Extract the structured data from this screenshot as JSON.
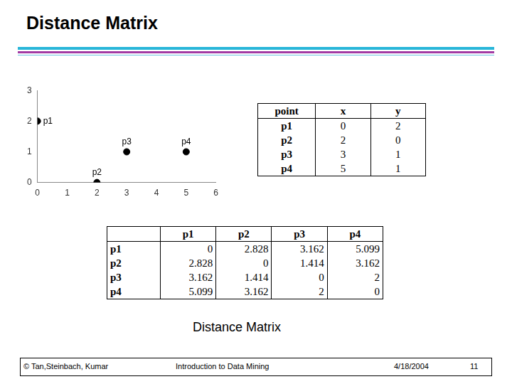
{
  "header": {
    "title": "Distance Matrix"
  },
  "chart_data": {
    "type": "scatter",
    "x": [
      0,
      2,
      3,
      5
    ],
    "values": [
      2,
      0,
      1,
      1
    ],
    "labels": [
      "p1",
      "p2",
      "p3",
      "p4"
    ],
    "color": "#000000",
    "marker": "circle",
    "xlim": [
      0,
      6
    ],
    "xticks": [
      0,
      1,
      2,
      3,
      4,
      5,
      6
    ],
    "ylim": [
      0,
      3
    ],
    "yticks": [
      0,
      1,
      2,
      3
    ],
    "grid": false
  },
  "points_table": {
    "header": [
      "point",
      "x",
      "y"
    ],
    "rows": [
      [
        "p1",
        0,
        2
      ],
      [
        "p2",
        2,
        0
      ],
      [
        "p3",
        3,
        1
      ],
      [
        "p4",
        5,
        1
      ]
    ]
  },
  "distance_table": {
    "header": [
      "p1",
      "p2",
      "p3",
      "p4"
    ],
    "rows": [
      [
        "p1",
        0,
        2.828,
        3.162,
        5.099
      ],
      [
        "p2",
        2.828,
        0,
        1.414,
        3.162
      ],
      [
        "p3",
        3.162,
        1.414,
        0,
        2
      ],
      [
        "p4",
        5.099,
        3.162,
        2,
        0
      ]
    ]
  },
  "caption": "Distance Matrix",
  "footer": [
    "© Tan,Steinbach, Kumar",
    "Introduction to Data Mining",
    "4/18/2004",
    "11"
  ]
}
